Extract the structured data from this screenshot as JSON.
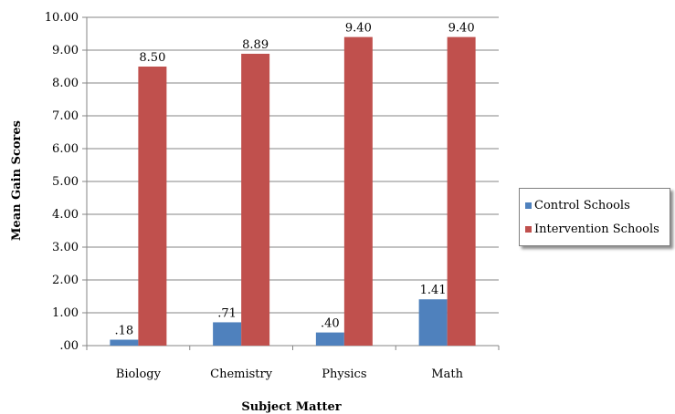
{
  "chart_data": {
    "type": "bar",
    "categories": [
      "Biology",
      "Chemistry",
      "Physics",
      "Math"
    ],
    "series": [
      {
        "name": "Control Schools",
        "values": [
          0.18,
          0.71,
          0.4,
          1.41
        ],
        "labels": [
          ".18",
          ".71",
          ".40",
          "1.41"
        ],
        "color": "#4F81BD"
      },
      {
        "name": "Intervention Schools",
        "values": [
          8.5,
          8.89,
          9.4,
          9.4
        ],
        "labels": [
          "8.50",
          "8.89",
          "9.40",
          "9.40"
        ],
        "color": "#C0504D"
      }
    ],
    "title": "",
    "xlabel": "Subject Matter",
    "ylabel": "Mean Gain Scores",
    "ylim": [
      0,
      10
    ],
    "yticks": [
      ".00",
      "1.00",
      "2.00",
      "3.00",
      "4.00",
      "5.00",
      "6.00",
      "7.00",
      "8.00",
      "9.00",
      "10.00"
    ],
    "grid": true,
    "legend_position": "right"
  }
}
